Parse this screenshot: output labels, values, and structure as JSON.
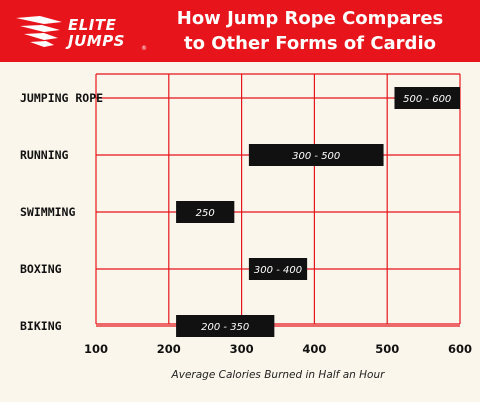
{
  "header": {
    "logo_line1": "ELITE",
    "logo_line2": "JUMPS",
    "logo_mark": "®",
    "title_line1": "How Jump Rope Compares",
    "title_line2": "to Other Forms of Cardio"
  },
  "colors": {
    "brand_red": "#e8141b",
    "background": "#fbf6ec",
    "grid": "#e8141b",
    "bar": "#111111"
  },
  "chart_data": {
    "type": "bar",
    "orientation": "horizontal-range",
    "categories": [
      "JUMPING ROPE",
      "RUNNING",
      "SWIMMING",
      "BOXING",
      "BIKING"
    ],
    "ranges": [
      [
        510,
        600
      ],
      [
        310,
        495
      ],
      [
        210,
        290
      ],
      [
        310,
        390
      ],
      [
        210,
        345
      ]
    ],
    "labels": [
      "500 - 600",
      "300 - 500",
      "250",
      "300 - 400",
      "200 - 350"
    ],
    "xlabel": "Average Calories Burned in Half an Hour",
    "xlim": [
      100,
      600
    ],
    "xticks": [
      100,
      200,
      300,
      400,
      500,
      600
    ],
    "grid": true
  }
}
